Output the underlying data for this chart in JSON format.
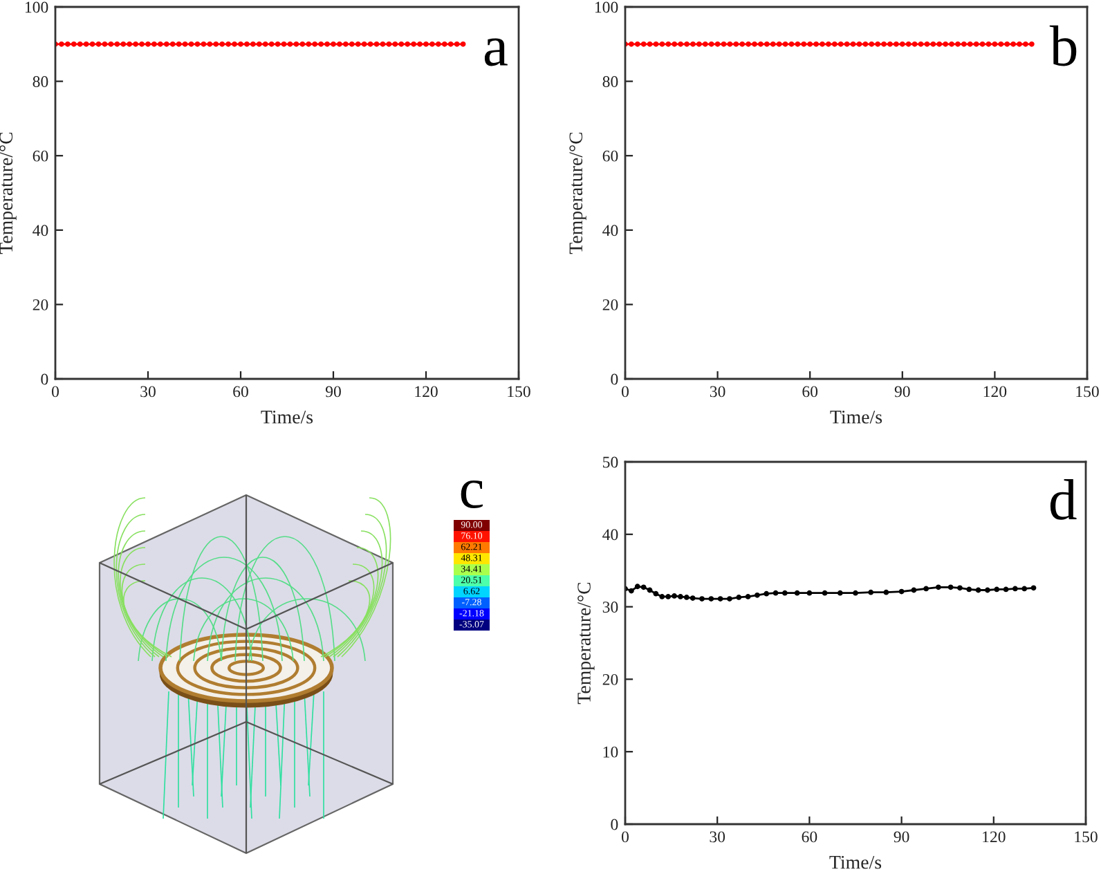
{
  "chart_data": [
    {
      "type": "line",
      "title": "a",
      "xlabel": "Time/s",
      "ylabel": "Temperature/°C",
      "xlim": [
        0,
        150
      ],
      "xticks": [
        0,
        30,
        60,
        90,
        120,
        150
      ],
      "ylim": [
        0,
        100
      ],
      "yticks": [
        0,
        20,
        40,
        60,
        80,
        100
      ],
      "marker": "circle",
      "x": [
        0,
        2,
        4,
        6,
        8,
        10,
        12,
        14,
        16,
        18,
        20,
        22,
        24,
        26,
        28,
        30,
        32,
        34,
        36,
        38,
        40,
        42,
        44,
        46,
        48,
        50,
        52,
        54,
        56,
        58,
        60,
        62,
        64,
        66,
        68,
        70,
        72,
        74,
        76,
        78,
        80,
        82,
        84,
        86,
        88,
        90,
        92,
        94,
        96,
        98,
        100,
        102,
        104,
        106,
        108,
        110,
        112,
        114,
        116,
        118,
        120,
        122,
        124,
        126,
        128,
        130,
        132
      ],
      "series": [
        {
          "color": "#ff0000",
          "values": [
            90,
            90,
            90,
            90,
            90,
            90,
            90,
            90,
            90,
            90,
            90,
            90,
            90,
            90,
            90,
            90,
            90,
            90,
            90,
            90,
            90,
            90,
            90,
            90,
            90,
            90,
            90,
            90,
            90,
            90,
            90,
            90,
            90,
            90,
            90,
            90,
            90,
            90,
            90,
            90,
            90,
            90,
            90,
            90,
            90,
            90,
            90,
            90,
            90,
            90,
            90,
            90,
            90,
            90,
            90,
            90,
            90,
            90,
            90,
            90,
            90,
            90,
            90,
            90,
            90,
            90,
            90
          ]
        }
      ]
    },
    {
      "type": "line",
      "title": "b",
      "xlabel": "Time/s",
      "ylabel": "Temperature/°C",
      "xlim": [
        0,
        150
      ],
      "xticks": [
        0,
        30,
        60,
        90,
        120,
        150
      ],
      "ylim": [
        0,
        100
      ],
      "yticks": [
        0,
        20,
        40,
        60,
        80,
        100
      ],
      "marker": "circle",
      "x": [
        0,
        2,
        4,
        6,
        8,
        10,
        12,
        14,
        16,
        18,
        20,
        22,
        24,
        26,
        28,
        30,
        32,
        34,
        36,
        38,
        40,
        42,
        44,
        46,
        48,
        50,
        52,
        54,
        56,
        58,
        60,
        62,
        64,
        66,
        68,
        70,
        72,
        74,
        76,
        78,
        80,
        82,
        84,
        86,
        88,
        90,
        92,
        94,
        96,
        98,
        100,
        102,
        104,
        106,
        108,
        110,
        112,
        114,
        116,
        118,
        120,
        122,
        124,
        126,
        128,
        130,
        132
      ],
      "series": [
        {
          "color": "#ff0000",
          "values": [
            90,
            90,
            90,
            90,
            90,
            90,
            90,
            90,
            90,
            90,
            90,
            90,
            90,
            90,
            90,
            90,
            90,
            90,
            90,
            90,
            90,
            90,
            90,
            90,
            90,
            90,
            90,
            90,
            90,
            90,
            90,
            90,
            90,
            90,
            90,
            90,
            90,
            90,
            90,
            90,
            90,
            90,
            90,
            90,
            90,
            90,
            90,
            90,
            90,
            90,
            90,
            90,
            90,
            90,
            90,
            90,
            90,
            90,
            90,
            90,
            90,
            90,
            90,
            90,
            90,
            90,
            90
          ]
        }
      ]
    },
    {
      "type": "heatmap",
      "title": "c",
      "categories": [
        null
      ],
      "y_categories": [
        null,
        null,
        null,
        null,
        null,
        null,
        null,
        null,
        null,
        null
      ],
      "cells": [
        [
          90.0
        ],
        [
          76.1
        ],
        [
          62.21
        ],
        [
          48.31
        ],
        [
          34.41
        ],
        [
          20.51
        ],
        [
          6.62
        ],
        [
          -7.28
        ],
        [
          -21.18
        ],
        [
          -35.07
        ]
      ],
      "cell_labels": [
        [
          "90.00"
        ],
        [
          "76.10"
        ],
        [
          "62.21"
        ],
        [
          "48.31"
        ],
        [
          "34.41"
        ],
        [
          "20.51"
        ],
        [
          "6.62"
        ],
        [
          "-7.28"
        ],
        [
          "-21.18"
        ],
        [
          "-35.07"
        ]
      ]
    },
    {
      "type": "line",
      "title": "d",
      "xlabel": "Time/s",
      "ylabel": "Temperature/°C",
      "xlim": [
        0,
        150
      ],
      "xticks": [
        0,
        30,
        60,
        90,
        120,
        150
      ],
      "ylim": [
        0,
        50
      ],
      "yticks": [
        0,
        10,
        20,
        30,
        40,
        50
      ],
      "marker": "circle",
      "x": [
        0,
        2,
        4,
        6,
        8,
        10,
        12,
        14,
        16,
        18,
        20,
        22,
        25,
        28,
        31,
        34,
        37,
        40,
        43,
        46,
        49,
        52,
        56,
        60,
        65,
        70,
        75,
        80,
        85,
        90,
        94,
        98,
        102,
        106,
        109,
        112,
        115,
        118,
        121,
        124,
        127,
        130,
        133
      ],
      "series": [
        {
          "color": "#000000",
          "values": [
            32.5,
            32.2,
            32.8,
            32.7,
            32.3,
            31.8,
            31.4,
            31.4,
            31.5,
            31.4,
            31.3,
            31.2,
            31.1,
            31.1,
            31.1,
            31.1,
            31.3,
            31.4,
            31.6,
            31.8,
            31.9,
            31.9,
            31.9,
            31.9,
            31.9,
            31.9,
            31.9,
            32.0,
            32.0,
            32.1,
            32.3,
            32.5,
            32.7,
            32.7,
            32.6,
            32.4,
            32.3,
            32.3,
            32.4,
            32.4,
            32.5,
            32.5,
            32.6
          ]
        }
      ]
    }
  ]
}
